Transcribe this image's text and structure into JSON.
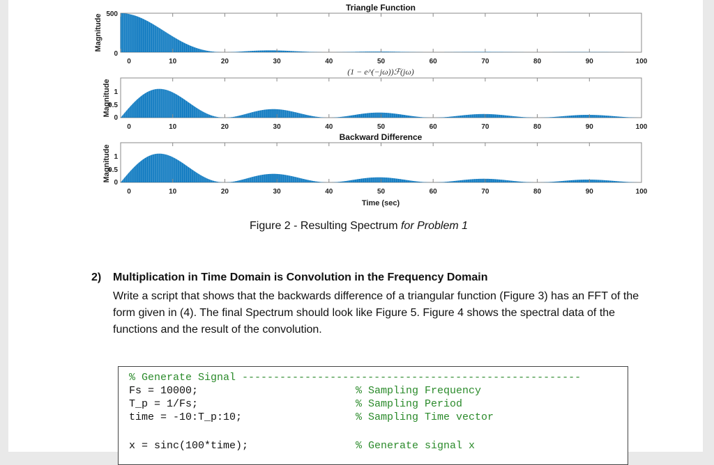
{
  "figure": {
    "subplots": [
      {
        "title": "Triangle Function",
        "ylabel": "Magnitude",
        "yticks": [
          "0",
          "500"
        ],
        "xlabel": ""
      },
      {
        "title_math": "(1 − e^(−jω))ℱ(jω)",
        "ylabel": "Magnitude",
        "yticks": [
          "0",
          "0.5",
          "1"
        ],
        "xlabel": ""
      },
      {
        "title": "Backward Difference",
        "ylabel": "Magnitude",
        "yticks": [
          "0",
          "0.5",
          "1"
        ],
        "xlabel": "Time (sec)"
      }
    ],
    "xticks": [
      "0",
      "10",
      "20",
      "30",
      "40",
      "50",
      "60",
      "70",
      "80",
      "90",
      "100"
    ]
  },
  "caption": {
    "main": "Figure 2 - Resulting Spectrum ",
    "italic": "for Problem 1"
  },
  "question": {
    "number": "2)",
    "title": "Multiplication in Time Domain is Convolution in the Frequency Domain",
    "body": "Write a script that shows that the backwards difference of a triangular function (Figure 3) has an FFT of the form given in (4). The final Spectrum should look like Figure 5. Figure 4 shows the spectral data of the functions and the result of the convolution."
  },
  "code": {
    "header_comment": "% Generate Signal",
    "lines": [
      {
        "code": "Fs = 10000;",
        "comment": "% Sampling Frequency"
      },
      {
        "code": "T_p = 1/Fs;",
        "comment": "% Sampling Period"
      },
      {
        "code": "time = -10:T_p:10;",
        "comment": "% Sampling Time vector"
      },
      {
        "code": "x = sinc(100*time);",
        "comment": "% Generate signal x"
      }
    ]
  },
  "colors": {
    "series": "#0072bd",
    "axis": "#555555",
    "comment": "#2a8a2a"
  }
}
